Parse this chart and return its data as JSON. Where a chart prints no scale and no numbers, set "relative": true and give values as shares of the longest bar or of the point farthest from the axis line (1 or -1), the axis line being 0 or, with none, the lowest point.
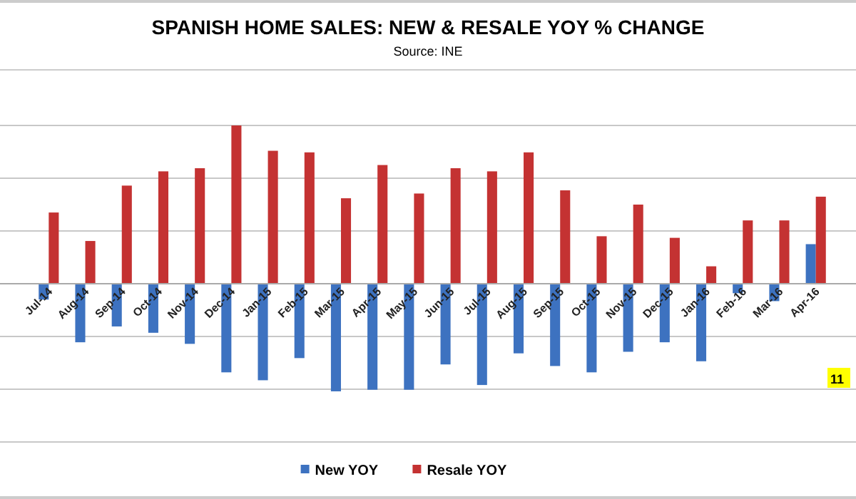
{
  "chart_data": {
    "type": "bar",
    "title": "SPANISH HOME SALES: NEW & RESALE YOY % CHANGE",
    "subtitle": "Source: INE",
    "relative": true,
    "grid": "y",
    "legend": "bottom",
    "categories": [
      "Jul-14",
      "Aug-14",
      "Sep-14",
      "Oct-14",
      "Nov-14",
      "Dec-14",
      "Jan-15",
      "Feb-15",
      "Mar-15",
      "Apr-15",
      "May-15",
      "Jun-15",
      "Jul-15",
      "Aug-15",
      "Sep-15",
      "Oct-15",
      "Nov-15",
      "Dec-15",
      "Jan-16",
      "Feb-16",
      "Mar-16",
      "Apr-16"
    ],
    "series": [
      {
        "name": "New YOY",
        "color": "#3d72c0",
        "values": [
          -0.1,
          -0.37,
          -0.27,
          -0.31,
          -0.38,
          -0.56,
          -0.61,
          -0.47,
          -0.68,
          -0.67,
          -0.67,
          -0.51,
          -0.64,
          -0.44,
          -0.52,
          -0.56,
          -0.43,
          -0.37,
          -0.49,
          -0.06,
          -0.11,
          0.25
        ]
      },
      {
        "name": "Resale YOY",
        "color": "#c43232",
        "values": [
          0.45,
          0.27,
          0.62,
          0.71,
          0.73,
          1,
          0.84,
          0.83,
          0.54,
          0.75,
          0.57,
          0.73,
          0.71,
          0.83,
          0.59,
          0.3,
          0.5,
          0.29,
          0.11,
          0.4,
          0.4,
          0.55
        ]
      }
    ],
    "annotations": [
      "11"
    ]
  }
}
